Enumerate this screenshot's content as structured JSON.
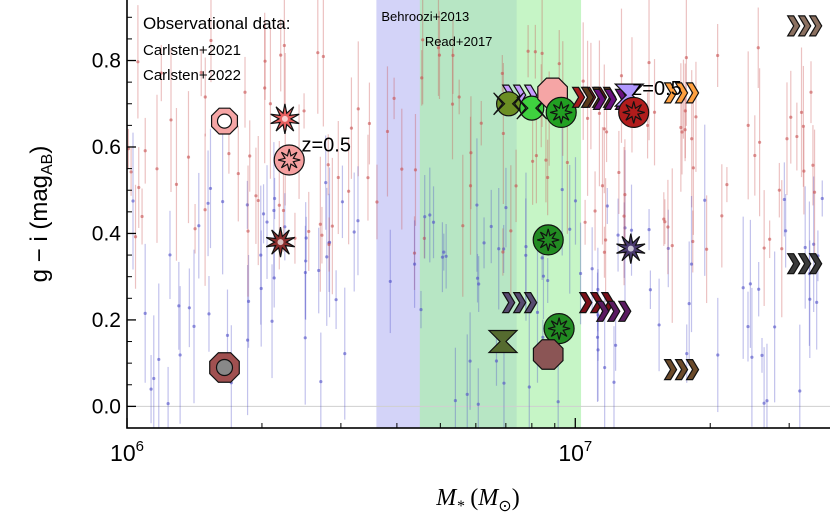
{
  "chart_data": {
    "type": "scatter",
    "xlabel": "M_* (M_⊙)",
    "ylabel": "g − i (mag_AB)",
    "x_scale": "log",
    "xlim": [
      1000000,
      37000000
    ],
    "ylim": [
      -0.05,
      0.94
    ],
    "x_ticks": [
      {
        "value": 1000000,
        "base": "10",
        "exp": "6"
      },
      {
        "value": 10000000,
        "base": "10",
        "exp": "7"
      }
    ],
    "y_ticks": [
      "0.0",
      "0.2",
      "0.4",
      "0.6",
      "0.8"
    ],
    "y_tick_values": [
      0.0,
      0.2,
      0.4,
      0.6,
      0.8
    ],
    "legend_title": "Observational data:",
    "legend_entries": [
      "Carlsten+2021",
      "Carlsten+2022"
    ],
    "bands": [
      {
        "name": "Behroozi+2013",
        "x_range": [
          3600000,
          7400000
        ],
        "color": "#bcbcf5",
        "label_color": "#2a2aa8"
      },
      {
        "name": "Read+2017",
        "x_range": [
          4500000,
          10300000
        ],
        "color": "#a8f0a8",
        "label_color": "#22b022"
      }
    ],
    "annotations": [
      {
        "text": "z=0.5",
        "x": 2450000,
        "y": 0.59,
        "color": "#e52222"
      },
      {
        "text": "z=0.5",
        "x": 13400000,
        "y": 0.72,
        "color": "#b01c1c"
      }
    ],
    "hline": 0.0,
    "series": [
      {
        "name": "Carlsten+2021",
        "color": "#c85050"
      },
      {
        "name": "Carlsten+2022",
        "color": "#5050c8"
      }
    ],
    "simulated_points": [
      {
        "x": 1650000,
        "y": 0.66,
        "symbol": "octagon-ring",
        "color": "#f5a5a5"
      },
      {
        "x": 2250000,
        "y": 0.665,
        "symbol": "star",
        "color": "#e86060"
      },
      {
        "x": 2300000,
        "y": 0.57,
        "symbol": "star-circle",
        "color": "#f5a0a0"
      },
      {
        "x": 2200000,
        "y": 0.38,
        "symbol": "star",
        "color": "#8b2e2e"
      },
      {
        "x": 1650000,
        "y": 0.09,
        "symbol": "octagon-dot",
        "color": "#a05050"
      },
      {
        "x": 7400000,
        "y": 0.72,
        "symbol": "arrow",
        "color": "#c79bff"
      },
      {
        "x": 7100000,
        "y": 0.7,
        "symbol": "hourglass-circle",
        "color": "#6b8e23"
      },
      {
        "x": 8000000,
        "y": 0.69,
        "symbol": "hourglass-circle",
        "color": "#3fd13f"
      },
      {
        "x": 8900000,
        "y": 0.725,
        "symbol": "octagon",
        "color": "#f5a5a5"
      },
      {
        "x": 9300000,
        "y": 0.68,
        "symbol": "star-circle",
        "color": "#22a022"
      },
      {
        "x": 10600000,
        "y": 0.715,
        "symbol": "arrow",
        "color": "#a51c1c"
      },
      {
        "x": 11100000,
        "y": 0.715,
        "symbol": "arrow",
        "color": "#5a3a1a"
      },
      {
        "x": 11800000,
        "y": 0.71,
        "symbol": "arrow",
        "color": "#6a1080"
      },
      {
        "x": 13200000,
        "y": 0.72,
        "symbol": "hourglass",
        "color": "#b097ff"
      },
      {
        "x": 13500000,
        "y": 0.68,
        "symbol": "star-circle",
        "color": "#b01c1c"
      },
      {
        "x": 17000000,
        "y": 0.725,
        "symbol": "arrow",
        "color": "#ffa040"
      },
      {
        "x": 8700000,
        "y": 0.385,
        "symbol": "star-circle",
        "color": "#228b22"
      },
      {
        "x": 13300000,
        "y": 0.365,
        "symbol": "star",
        "color": "#4a3a70"
      },
      {
        "x": 7400000,
        "y": 0.24,
        "symbol": "arrow",
        "color": "#574a70"
      },
      {
        "x": 11000000,
        "y": 0.24,
        "symbol": "arrow",
        "color": "#7a0f1a"
      },
      {
        "x": 12000000,
        "y": 0.22,
        "symbol": "arrow",
        "color": "#5a1a60"
      },
      {
        "x": 9200000,
        "y": 0.18,
        "symbol": "star-circle",
        "color": "#228b22"
      },
      {
        "x": 6900000,
        "y": 0.15,
        "symbol": "hourglass",
        "color": "#556b2f"
      },
      {
        "x": 8700000,
        "y": 0.12,
        "symbol": "octagon",
        "color": "#8b5555"
      },
      {
        "x": 17000000,
        "y": 0.085,
        "symbol": "arrow",
        "color": "#6b4a2a"
      },
      {
        "x": 32000000,
        "y": 0.88,
        "symbol": "arrow",
        "color": "#8b7060"
      },
      {
        "x": 32000000,
        "y": 0.33,
        "symbol": "arrow",
        "color": "#3a3a3a"
      }
    ]
  }
}
